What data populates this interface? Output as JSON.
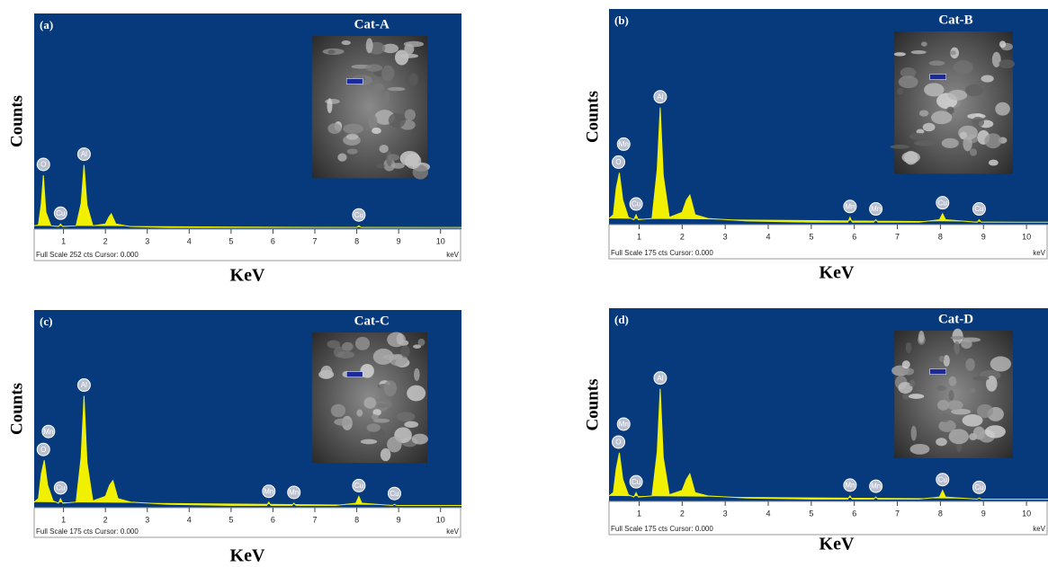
{
  "chart_data": [
    {
      "type": "line",
      "panel_label": "(a)",
      "title": "Cat-A",
      "ylabel": "Counts",
      "xlabel": "KeV",
      "footer": "Full Scale 252 cts Cursor: 0.000",
      "unit_label": "keV",
      "background": "#063a7c",
      "color": "#f0f000",
      "xlim": [
        0.3,
        10.5
      ],
      "ylim": [
        0,
        252
      ],
      "xticks": [
        1,
        2,
        3,
        4,
        5,
        6,
        7,
        8,
        9,
        10
      ],
      "x": [
        0.3,
        0.4,
        0.47,
        0.52,
        0.58,
        0.7,
        0.88,
        0.93,
        0.98,
        1.3,
        1.42,
        1.49,
        1.56,
        1.7,
        2.0,
        2.08,
        2.14,
        2.25,
        2.6,
        3.5,
        5,
        7,
        8.0,
        8.05,
        8.1,
        9,
        10.5
      ],
      "values": [
        4,
        5,
        30,
        63,
        20,
        4,
        3,
        6,
        3,
        4,
        30,
        75,
        28,
        4,
        6,
        14,
        18,
        6,
        3,
        2,
        2,
        2,
        2,
        4,
        2,
        2,
        2
      ],
      "peak_labels": [
        {
          "label": "O",
          "x": 0.52
        },
        {
          "label": "Cu",
          "x": 0.93
        },
        {
          "label": "Al",
          "x": 1.49
        },
        {
          "label": "Cu",
          "x": 8.05
        }
      ]
    },
    {
      "type": "line",
      "panel_label": "(b)",
      "title": "Cat-B",
      "ylabel": "Counts",
      "xlabel": "KeV",
      "footer": "Full Scale 175 cts Cursor: 0.000",
      "unit_label": "keV",
      "background": "#063a7c",
      "color": "#f0f000",
      "xlim": [
        0.3,
        10.5
      ],
      "ylim": [
        0,
        175
      ],
      "xticks": [
        1,
        2,
        3,
        4,
        5,
        6,
        7,
        8,
        9,
        10
      ],
      "x": [
        0.3,
        0.4,
        0.47,
        0.54,
        0.62,
        0.75,
        0.88,
        0.93,
        0.98,
        1.3,
        1.42,
        1.49,
        1.56,
        1.7,
        2.0,
        2.1,
        2.18,
        2.3,
        2.6,
        3.5,
        5,
        5.85,
        5.9,
        5.95,
        6.45,
        6.5,
        6.55,
        7.5,
        7.98,
        8.05,
        8.12,
        8.85,
        8.9,
        8.95,
        10.5
      ],
      "values": [
        5,
        8,
        30,
        42,
        20,
        6,
        4,
        8,
        4,
        5,
        45,
        95,
        40,
        6,
        10,
        20,
        24,
        8,
        5,
        3,
        2,
        2,
        6,
        2,
        2,
        4,
        2,
        2,
        4,
        9,
        4,
        2,
        4,
        2,
        2
      ],
      "peak_labels": [
        {
          "label": "O",
          "x": 0.52
        },
        {
          "label": "Mn",
          "x": 0.64
        },
        {
          "label": "Cu",
          "x": 0.93
        },
        {
          "label": "Al",
          "x": 1.49
        },
        {
          "label": "Mn",
          "x": 5.9
        },
        {
          "label": "Mn",
          "x": 6.5
        },
        {
          "label": "Cu",
          "x": 8.05
        },
        {
          "label": "Cu",
          "x": 8.9
        }
      ]
    },
    {
      "type": "line",
      "panel_label": "(c)",
      "title": "Cat-C",
      "ylabel": "Counts",
      "xlabel": "KeV",
      "footer": "Full Scale 175 cts Cursor: 0.000",
      "unit_label": "keV",
      "background": "#063a7c",
      "color": "#f0f000",
      "xlim": [
        0.3,
        10.5
      ],
      "ylim": [
        0,
        175
      ],
      "xticks": [
        1,
        2,
        3,
        4,
        5,
        6,
        7,
        8,
        9,
        10
      ],
      "x": [
        0.3,
        0.4,
        0.47,
        0.54,
        0.62,
        0.75,
        0.88,
        0.93,
        0.98,
        1.3,
        1.42,
        1.49,
        1.56,
        1.7,
        2.0,
        2.1,
        2.18,
        2.3,
        2.6,
        3.5,
        5,
        5.85,
        5.9,
        5.95,
        6.45,
        6.5,
        6.55,
        7.5,
        7.98,
        8.05,
        8.12,
        8.85,
        8.9,
        8.95,
        10.5
      ],
      "values": [
        5,
        8,
        30,
        42,
        20,
        6,
        4,
        8,
        4,
        5,
        45,
        99,
        40,
        6,
        10,
        20,
        24,
        8,
        5,
        3,
        2,
        2,
        5,
        2,
        2,
        4,
        2,
        2,
        4,
        10,
        4,
        2,
        3,
        2,
        2
      ],
      "peak_labels": [
        {
          "label": "O",
          "x": 0.52
        },
        {
          "label": "Mn",
          "x": 0.64
        },
        {
          "label": "Cu",
          "x": 0.93
        },
        {
          "label": "Al",
          "x": 1.49
        },
        {
          "label": "Mn",
          "x": 5.9
        },
        {
          "label": "Mn",
          "x": 6.5
        },
        {
          "label": "Cu",
          "x": 8.05
        },
        {
          "label": "Cu",
          "x": 8.9
        }
      ]
    },
    {
      "type": "line",
      "panel_label": "(d)",
      "title": "Cat-D",
      "ylabel": "Counts",
      "xlabel": "KeV",
      "footer": "Full Scale 175 cts Cursor: 0.000",
      "unit_label": "keV",
      "background": "#063a7c",
      "color": "#f0f000",
      "xlim": [
        0.3,
        10.5
      ],
      "ylim": [
        0,
        175
      ],
      "xticks": [
        1,
        2,
        3,
        4,
        5,
        6,
        7,
        8,
        9,
        10
      ],
      "x": [
        0.3,
        0.4,
        0.47,
        0.54,
        0.62,
        0.75,
        0.88,
        0.93,
        0.98,
        1.3,
        1.42,
        1.49,
        1.56,
        1.7,
        2.0,
        2.1,
        2.18,
        2.3,
        2.6,
        3.5,
        5,
        5.85,
        5.9,
        5.95,
        6.45,
        6.5,
        6.55,
        7.5,
        7.98,
        8.05,
        8.12,
        8.85,
        8.9,
        8.95,
        10.5
      ],
      "values": [
        5,
        8,
        30,
        44,
        20,
        6,
        4,
        8,
        4,
        5,
        45,
        102,
        40,
        6,
        10,
        20,
        25,
        8,
        5,
        3,
        2,
        2,
        5,
        2,
        2,
        4,
        2,
        2,
        4,
        10,
        4,
        2,
        3,
        2,
        2
      ],
      "peak_labels": [
        {
          "label": "O",
          "x": 0.52
        },
        {
          "label": "Mn",
          "x": 0.64
        },
        {
          "label": "Cu",
          "x": 0.93
        },
        {
          "label": "Al",
          "x": 1.49
        },
        {
          "label": "Mn",
          "x": 5.9
        },
        {
          "label": "Mn",
          "x": 6.5
        },
        {
          "label": "Cu",
          "x": 8.05
        },
        {
          "label": "Cu",
          "x": 8.9
        }
      ]
    }
  ]
}
